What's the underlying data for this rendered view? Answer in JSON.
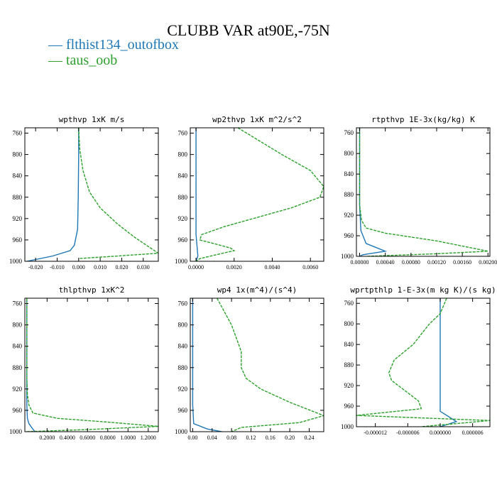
{
  "title": "CLUBB VAR at90E,-75N",
  "colors": {
    "flthist134_outofbox": "#1f77b4",
    "taus_oob": "#2ca02c"
  },
  "legend": [
    {
      "key": "flthist134_outofbox",
      "label": "flthist134_outofbox"
    },
    {
      "key": "taus_oob",
      "label": "taus_oob"
    }
  ],
  "chart_data": [
    {
      "type": "line",
      "title": "wpthvp  1xK m/s",
      "xlim": [
        -0.025,
        0.037
      ],
      "xticks": [
        -0.02,
        -0.01,
        0.0,
        0.01,
        0.02,
        0.03
      ],
      "xtick_labels": [
        "-0.020",
        "-0.010",
        "0.000",
        "0.010",
        "0.020",
        "0.030"
      ],
      "ylim": [
        1000,
        750
      ],
      "yticks": [
        760,
        800,
        840,
        880,
        920,
        960,
        1000
      ],
      "ytick_labels": [
        "760",
        "800",
        "840",
        "880",
        "920",
        "960",
        "1000"
      ],
      "series": [
        {
          "name": "flthist134_outofbox",
          "points": [
            [
              0.0,
              750
            ],
            [
              0.0,
              800
            ],
            [
              -0.0002,
              880
            ],
            [
              -0.0005,
              940
            ],
            [
              -0.002,
              970
            ],
            [
              -0.004,
              980
            ],
            [
              -0.012,
              990
            ],
            [
              -0.024,
              1000
            ]
          ]
        },
        {
          "name": "taus_oob",
          "points": [
            [
              0.0,
              750
            ],
            [
              0.0005,
              790
            ],
            [
              0.002,
              830
            ],
            [
              0.005,
              870
            ],
            [
              0.01,
              900
            ],
            [
              0.018,
              930
            ],
            [
              0.026,
              955
            ],
            [
              0.037,
              985
            ],
            [
              0.0,
              995
            ]
          ]
        }
      ]
    },
    {
      "type": "line",
      "title": "wp2thvp  1xK m^2/s^2",
      "xlim": [
        -0.0003,
        0.0067
      ],
      "xticks": [
        0.0,
        0.002,
        0.004,
        0.006
      ],
      "xtick_labels": [
        "0.0000",
        "0.0020",
        "0.0040",
        "0.0060"
      ],
      "ylim": [
        1000,
        750
      ],
      "yticks": [
        760,
        800,
        840,
        880,
        920,
        960,
        1000
      ],
      "ytick_labels": [
        "760",
        "800",
        "840",
        "880",
        "920",
        "960",
        "1000"
      ],
      "series": [
        {
          "name": "flthist134_outofbox",
          "points": [
            [
              0.0,
              750
            ],
            [
              0.0,
              900
            ],
            [
              0.0,
              950
            ],
            [
              0.0001,
              990
            ],
            [
              0.0,
              1000
            ]
          ]
        },
        {
          "name": "taus_oob",
          "points": [
            [
              0.0022,
              750
            ],
            [
              0.0045,
              800
            ],
            [
              0.006,
              830
            ],
            [
              0.0067,
              860
            ],
            [
              0.0065,
              880
            ],
            [
              0.005,
              900
            ],
            [
              0.003,
              920
            ],
            [
              0.0015,
              935
            ],
            [
              0.0003,
              950
            ],
            [
              0.0002,
              960
            ],
            [
              0.0018,
              975
            ],
            [
              0.002,
              980
            ],
            [
              0.0002,
              995
            ],
            [
              0.0,
              1000
            ]
          ]
        }
      ]
    },
    {
      "type": "line",
      "title": "rtpthvp  1E-3x(kg/kg) K",
      "xlim": [
        -5e-05,
        0.00203
      ],
      "xticks": [
        0.0,
        0.0004,
        0.0008,
        0.0012,
        0.0016,
        0.002
      ],
      "xtick_labels": [
        "0.00000",
        "0.00040",
        "0.00080",
        "0.00120",
        "0.00160",
        "0.00200"
      ],
      "ylim": [
        1000,
        750
      ],
      "yticks": [
        760,
        800,
        840,
        880,
        920,
        960,
        1000
      ],
      "ytick_labels": [
        "760",
        "800",
        "840",
        "880",
        "920",
        "960",
        "1000"
      ],
      "series": [
        {
          "name": "flthist134_outofbox",
          "points": [
            [
              0.0,
              750
            ],
            [
              0.0,
              900
            ],
            [
              2e-05,
              950
            ],
            [
              0.0001,
              975
            ],
            [
              0.0004,
              990
            ],
            [
              5e-05,
              997
            ],
            [
              0.0,
              1000
            ]
          ]
        },
        {
          "name": "taus_oob",
          "points": [
            [
              0.0,
              750
            ],
            [
              0.0,
              900
            ],
            [
              3e-05,
              930
            ],
            [
              0.0001,
              945
            ],
            [
              0.0004,
              955
            ],
            [
              0.0012,
              970
            ],
            [
              0.002,
              990
            ],
            [
              0.0012,
              995
            ],
            [
              0.0001,
              1000
            ]
          ]
        }
      ]
    },
    {
      "type": "line",
      "title": "thlpthvp  1xK^2",
      "xlim": [
        -0.02,
        1.3
      ],
      "xticks": [
        0.2,
        0.4,
        0.6,
        0.8,
        1.0,
        1.2
      ],
      "xtick_labels": [
        "0.2000",
        "0.4000",
        "0.6000",
        "0.8000",
        "1.0000",
        "1.2000"
      ],
      "ylim": [
        1000,
        750
      ],
      "yticks": [
        760,
        800,
        840,
        880,
        920,
        960,
        1000
      ],
      "ytick_labels": [
        "760",
        "800",
        "840",
        "880",
        "920",
        "960",
        "1000"
      ],
      "series": [
        {
          "name": "flthist134_outofbox",
          "points": [
            [
              0.0,
              750
            ],
            [
              0.0,
              950
            ],
            [
              0.005,
              975
            ],
            [
              0.02,
              985
            ],
            [
              0.05,
              993
            ],
            [
              0.08,
              1000
            ]
          ]
        },
        {
          "name": "taus_oob",
          "points": [
            [
              0.0,
              750
            ],
            [
              0.0,
              900
            ],
            [
              0.005,
              930
            ],
            [
              0.02,
              950
            ],
            [
              0.06,
              965
            ],
            [
              0.3,
              975
            ],
            [
              0.8,
              982
            ],
            [
              1.3,
              990
            ],
            [
              0.6,
              996
            ],
            [
              0.0,
              1000
            ]
          ]
        }
      ]
    },
    {
      "type": "line",
      "title": "wp4  1x(m^4)/(s^4)",
      "xlim": [
        -0.005,
        0.27
      ],
      "xticks": [
        0.0,
        0.04,
        0.08,
        0.12,
        0.16,
        0.2,
        0.24
      ],
      "xtick_labels": [
        "0.00",
        "0.04",
        "0.08",
        "0.12",
        "0.16",
        "0.20",
        "0.24"
      ],
      "ylim": [
        1000,
        750
      ],
      "yticks": [
        760,
        800,
        840,
        880,
        920,
        960,
        1000
      ],
      "ytick_labels": [
        "760",
        "800",
        "840",
        "880",
        "920",
        "960",
        "1000"
      ],
      "series": [
        {
          "name": "flthist134_outofbox",
          "points": [
            [
              0.0,
              750
            ],
            [
              0.0,
              950
            ],
            [
              0.002,
              985
            ],
            [
              0.03,
              995
            ],
            [
              0.06,
              1000
            ]
          ]
        },
        {
          "name": "taus_oob",
          "points": [
            [
              0.05,
              750
            ],
            [
              0.08,
              800
            ],
            [
              0.1,
              850
            ],
            [
              0.1,
              880
            ],
            [
              0.11,
              900
            ],
            [
              0.14,
              920
            ],
            [
              0.2,
              945
            ],
            [
              0.27,
              970
            ],
            [
              0.22,
              983
            ],
            [
              0.1,
              992
            ],
            [
              0.08,
              1000
            ]
          ]
        }
      ]
    },
    {
      "type": "line",
      "title": "wprtpthlp  1-E-3x(m kg K)/(s kg)",
      "xlim": [
        -1.55e-05,
        9.2e-06
      ],
      "xticks": [
        -1.2e-05,
        -6e-06,
        0.0,
        6e-06
      ],
      "xtick_labels": [
        "-0.000012",
        "-0.000006",
        "0.000000",
        "0.000006"
      ],
      "ylim": [
        1000,
        750
      ],
      "yticks": [
        760,
        800,
        840,
        880,
        920,
        960,
        1000
      ],
      "ytick_labels": [
        "760",
        "800",
        "840",
        "880",
        "920",
        "960",
        "1000"
      ],
      "series": [
        {
          "name": "flthist134_outofbox",
          "points": [
            [
              0.0,
              750
            ],
            [
              0.0,
              900
            ],
            [
              0.0,
              960
            ],
            [
              3e-09,
              970
            ],
            [
              1.5e-06,
              980
            ],
            [
              3e-06,
              990
            ],
            [
              0.0,
              1000
            ]
          ]
        },
        {
          "name": "taus_oob",
          "points": [
            [
              1.2e-06,
              750
            ],
            [
              0.0,
              780
            ],
            [
              -2e-06,
              800
            ],
            [
              -5e-06,
              840
            ],
            [
              -8.5e-06,
              870
            ],
            [
              -9.5e-06,
              895
            ],
            [
              -9e-06,
              910
            ],
            [
              -4e-06,
              950
            ],
            [
              -3.5e-06,
              965
            ],
            [
              -1.55e-05,
              978
            ],
            [
              9.2e-06,
              988
            ],
            [
              -3.5e-06,
              1000
            ]
          ]
        }
      ]
    }
  ]
}
